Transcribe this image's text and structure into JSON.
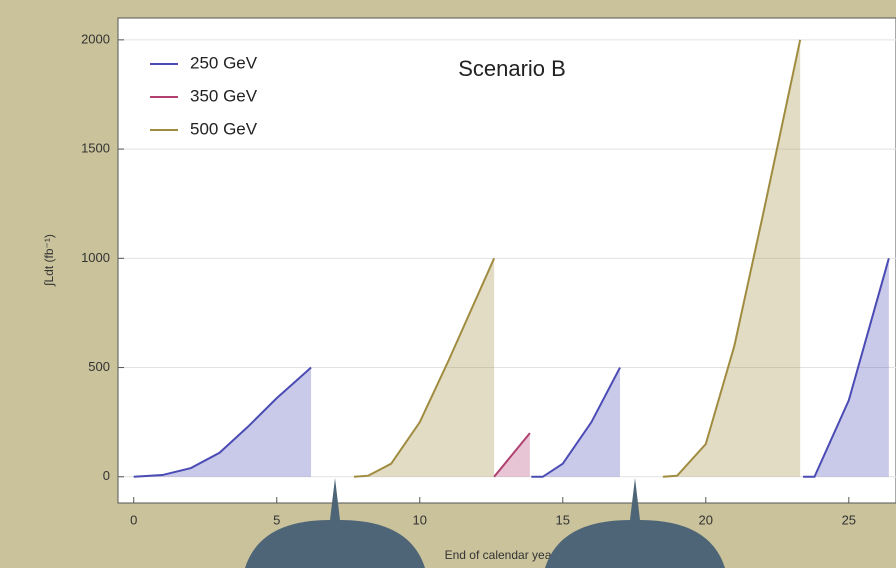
{
  "chart_data": {
    "type": "line",
    "title": "Scenario B",
    "ylabel": "∫Ldt (fb⁻¹)",
    "xlabel": "End of calendar year",
    "xlim": [
      -0.55,
      26.65
    ],
    "ylim": [
      -120,
      2100
    ],
    "xticks": [
      0,
      5,
      10,
      15,
      20,
      25
    ],
    "yticks": [
      0,
      500,
      1000,
      1500,
      2000
    ],
    "grid": true,
    "legend": "upper left",
    "fill_area": true,
    "series": [
      {
        "name": "250 GeV",
        "color": "#4b4bb5",
        "x": [
          0,
          1,
          2,
          3,
          4,
          5,
          6.2,
          null,
          13.9,
          14.3,
          15,
          16,
          17.0,
          null,
          23.4,
          23.8,
          25,
          26.4
        ],
        "values": [
          0,
          8,
          40,
          110,
          230,
          360,
          500,
          null,
          0,
          0,
          60,
          250,
          500,
          null,
          0,
          0,
          350,
          1000
        ]
      },
      {
        "name": "350 GeV",
        "color": "#b04070",
        "x": [
          12.6,
          13.85
        ],
        "values": [
          0,
          200
        ]
      },
      {
        "name": "500 GeV",
        "color": "#a08c40",
        "x": [
          7.7,
          8.2,
          9,
          10,
          11,
          12.6,
          null,
          18.5,
          19,
          20,
          21,
          22,
          23.3
        ],
        "values": [
          0,
          5,
          60,
          250,
          530,
          1000,
          null,
          0,
          5,
          150,
          600,
          1200,
          2000
        ]
      }
    ]
  }
}
